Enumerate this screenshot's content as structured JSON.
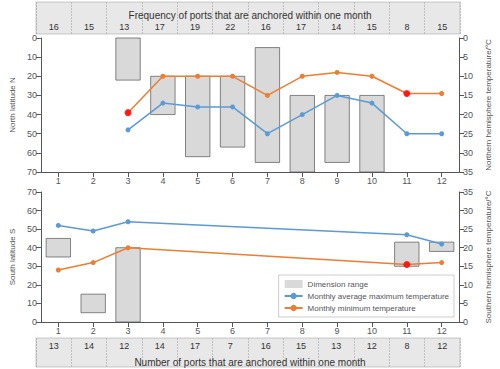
{
  "chart_data": [
    {
      "type": "table",
      "title": "Frequency of ports that are anchored within one month",
      "values": [
        16,
        15,
        13,
        17,
        19,
        22,
        16,
        17,
        14,
        15,
        8,
        15
      ]
    },
    {
      "type": "line",
      "ylabel": "North latitude N",
      "y2label": "Northern hemisphere temperature/°C",
      "xlim": [
        0.5,
        12.5
      ],
      "xticks": [
        1,
        2,
        3,
        4,
        5,
        6,
        7,
        8,
        9,
        10,
        11,
        12
      ],
      "ylim": [
        70,
        0
      ],
      "yticks": [
        0,
        10,
        20,
        30,
        40,
        50,
        60,
        70
      ],
      "y2lim": [
        35,
        0
      ],
      "y2ticks": [
        0,
        5,
        10,
        15,
        20,
        25,
        30,
        35
      ],
      "grid": false,
      "series": [
        {
          "name": "Dimension range",
          "type": "bar",
          "color": "#D9D9D9",
          "x": [
            1,
            2,
            3,
            4,
            5,
            6,
            7,
            8,
            9,
            10,
            11,
            12
          ],
          "bottom": [
            null,
            null,
            0,
            20,
            20,
            20,
            5,
            30,
            30,
            30,
            null,
            null
          ],
          "values": [
            null,
            null,
            22,
            40,
            62,
            57,
            65,
            70,
            65,
            70,
            null,
            null
          ]
        },
        {
          "name": "Monthly average maximum temperature",
          "type": "line",
          "color": "#5B9BD5",
          "marker": "circle",
          "x": [
            3,
            4,
            5,
            6,
            7,
            8,
            9,
            10,
            11,
            12
          ],
          "values": [
            48,
            34,
            36,
            36,
            50,
            40,
            30,
            34,
            50,
            50
          ]
        },
        {
          "name": "Monthly minimum temperature",
          "type": "line",
          "color": "#ED7D31",
          "marker": "circle",
          "x": [
            3,
            4,
            5,
            6,
            7,
            8,
            9,
            10,
            11,
            12
          ],
          "values": [
            39,
            20,
            20,
            20,
            30,
            20,
            18,
            20,
            29,
            29
          ]
        },
        {
          "type": "scatter",
          "color": "#FF0000",
          "marker": "circle",
          "x": [
            3,
            11
          ],
          "values": [
            39,
            29
          ]
        }
      ]
    },
    {
      "type": "line",
      "ylabel": "South latitude S",
      "y2label": "Southern hemisphere temperature/°C",
      "xlim": [
        0.5,
        12.5
      ],
      "xticks": [
        1,
        2,
        3,
        4,
        5,
        6,
        7,
        8,
        9,
        10,
        11,
        12
      ],
      "ylim": [
        0,
        70
      ],
      "yticks": [
        0,
        10,
        20,
        30,
        40,
        50,
        60,
        70
      ],
      "y2lim": [
        0,
        35
      ],
      "y2ticks": [
        0,
        5,
        10,
        15,
        20,
        25,
        30,
        35
      ],
      "grid": false,
      "legend": "lower right",
      "series": [
        {
          "name": "Dimension range",
          "type": "bar",
          "color": "#D9D9D9",
          "x": [
            1,
            2,
            3,
            4,
            5,
            6,
            7,
            8,
            9,
            10,
            11,
            12
          ],
          "bottom": [
            35,
            5,
            0,
            null,
            null,
            null,
            null,
            null,
            null,
            null,
            30,
            38
          ],
          "values": [
            45,
            15,
            40,
            null,
            null,
            null,
            null,
            null,
            null,
            null,
            43,
            43
          ]
        },
        {
          "name": "Monthly average maximum temperature",
          "type": "line",
          "color": "#5B9BD5",
          "marker": "circle",
          "x": [
            1,
            2,
            3,
            11,
            12
          ],
          "values": [
            52,
            49,
            54,
            47,
            42
          ]
        },
        {
          "name": "Monthly minimum temperature",
          "type": "line",
          "color": "#ED7D31",
          "marker": "circle",
          "x": [
            1,
            2,
            3,
            11,
            12
          ],
          "values": [
            28,
            32,
            40,
            31,
            32
          ]
        },
        {
          "type": "scatter",
          "color": "#FF0000",
          "marker": "circle",
          "x": [
            11
          ],
          "values": [
            31
          ]
        }
      ]
    },
    {
      "type": "table",
      "title": "Number of ports that are anchored within one month",
      "values": [
        13,
        14,
        12,
        14,
        17,
        7,
        16,
        15,
        13,
        12,
        8,
        12
      ]
    }
  ]
}
